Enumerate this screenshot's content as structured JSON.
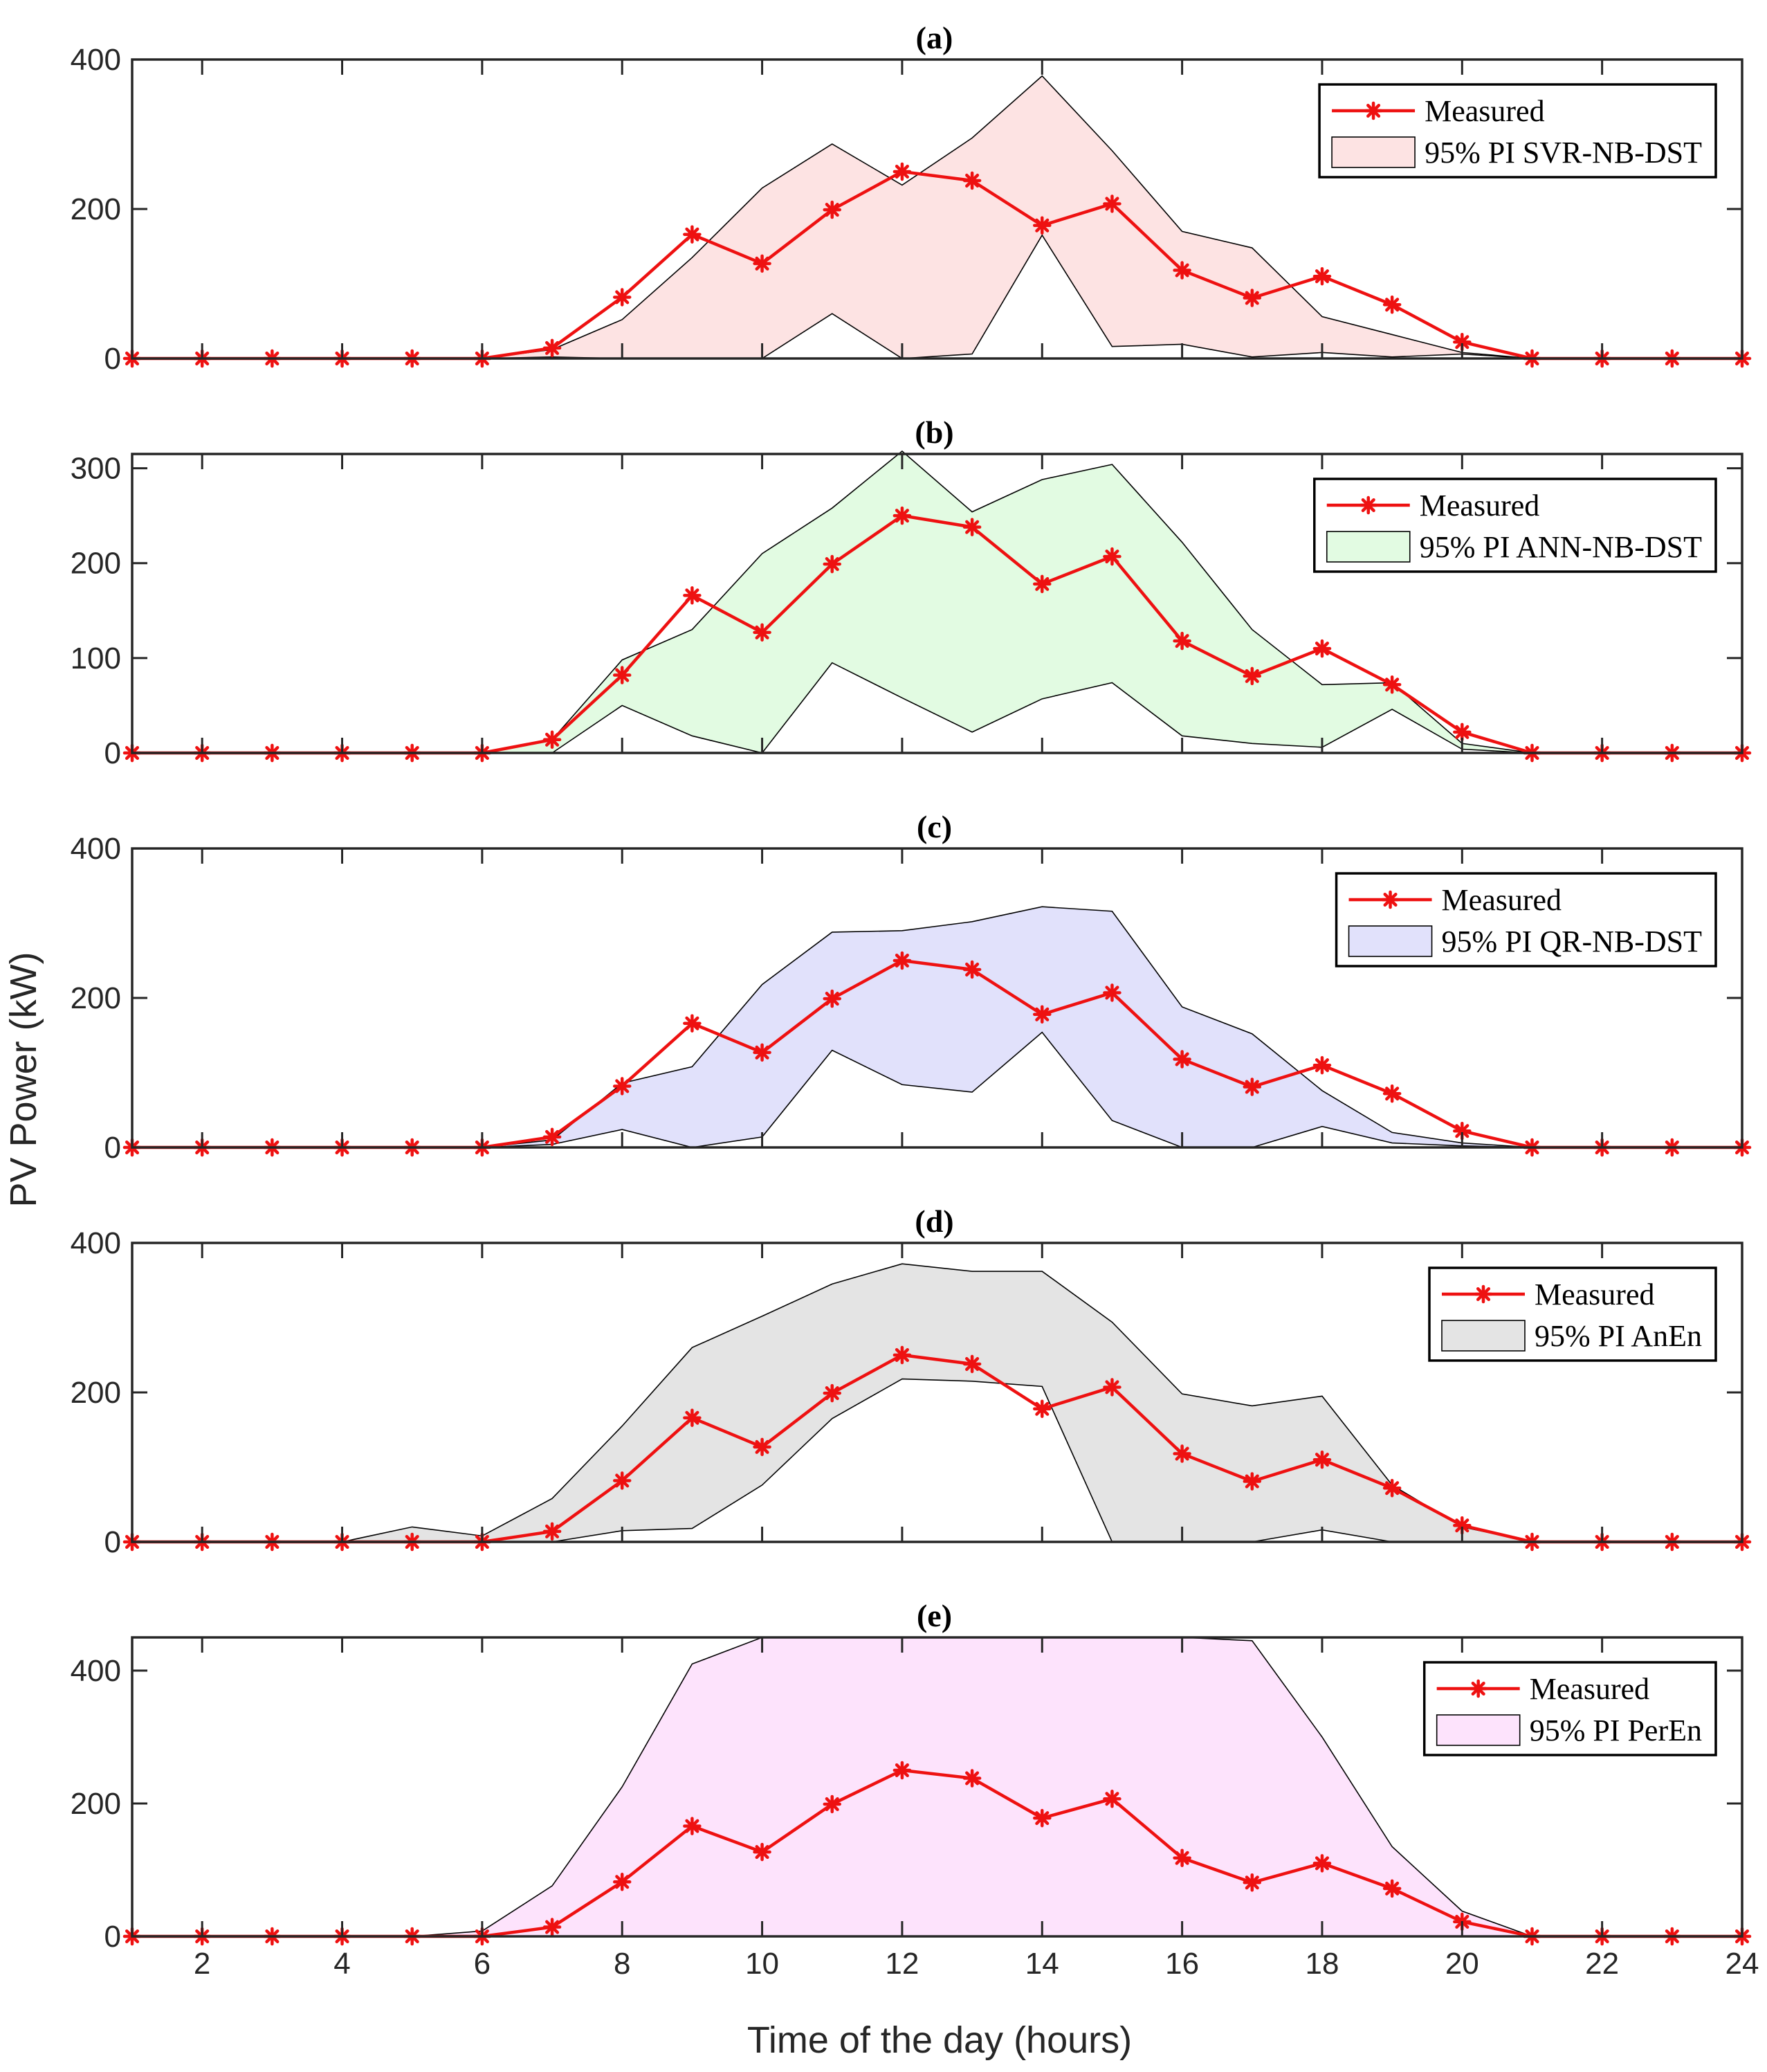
{
  "chart_data": {
    "type": "line",
    "ylabel": "PV Power (kW)",
    "xlabel": "Time of the day (hours)",
    "xlim": [
      1,
      24
    ],
    "xticks": [
      2,
      4,
      6,
      8,
      10,
      12,
      14,
      16,
      18,
      20,
      22,
      24
    ],
    "x": [
      1,
      2,
      3,
      4,
      5,
      6,
      7,
      8,
      9,
      10,
      11,
      12,
      13,
      14,
      15,
      16,
      17,
      18,
      19,
      20,
      21,
      22,
      23,
      24
    ],
    "measured": [
      0,
      0,
      0,
      0,
      0,
      0,
      14,
      82,
      166,
      127,
      199,
      250,
      238,
      178,
      207,
      118,
      81,
      110,
      72,
      22,
      0,
      0,
      0,
      0
    ],
    "colors": {
      "measured": "#ee1111",
      "band_edge": "#000000"
    },
    "panels": [
      {
        "title": "(a)",
        "ylim": [
          0,
          400
        ],
        "yticks": [
          0,
          200,
          400
        ],
        "legend": [
          "Measured",
          "95% PI SVR-NB-DST"
        ],
        "band_color": "#fde3e3",
        "upper": [
          0,
          0,
          0,
          0,
          0,
          0,
          12,
          52,
          135,
          228,
          287,
          232,
          295,
          378,
          278,
          170,
          148,
          56,
          32,
          8,
          0,
          0,
          0,
          0
        ],
        "lower": [
          0,
          0,
          0,
          0,
          0,
          0,
          2,
          0,
          0,
          0,
          60,
          0,
          6,
          165,
          16,
          19,
          2,
          8,
          2,
          6,
          0,
          0,
          0,
          0
        ]
      },
      {
        "title": "(b)",
        "ylim": [
          0,
          315
        ],
        "yticks": [
          0,
          100,
          200,
          300
        ],
        "legend": [
          "Measured",
          "95% PI ANN-NB-DST"
        ],
        "band_color": "#e2fbe2",
        "upper": [
          0,
          0,
          0,
          0,
          0,
          0,
          14,
          98,
          130,
          210,
          258,
          318,
          254,
          288,
          304,
          222,
          130,
          72,
          74,
          10,
          0,
          0,
          0,
          0
        ],
        "lower": [
          0,
          0,
          0,
          0,
          0,
          0,
          0,
          50,
          18,
          0,
          95,
          58,
          22,
          57,
          74,
          18,
          10,
          6,
          46,
          4,
          0,
          0,
          0,
          0
        ]
      },
      {
        "title": "(c)",
        "ylim": [
          0,
          400
        ],
        "yticks": [
          0,
          200,
          400
        ],
        "legend": [
          "Measured",
          "95% PI QR-NB-DST"
        ],
        "band_color": "#e1e1fb",
        "upper": [
          0,
          0,
          0,
          0,
          0,
          0,
          10,
          86,
          108,
          218,
          288,
          290,
          302,
          322,
          316,
          188,
          152,
          76,
          20,
          6,
          0,
          0,
          0,
          0
        ],
        "lower": [
          0,
          0,
          0,
          0,
          0,
          0,
          4,
          24,
          0,
          14,
          130,
          84,
          74,
          154,
          36,
          0,
          0,
          28,
          6,
          2,
          0,
          0,
          0,
          0
        ]
      },
      {
        "title": "(d)",
        "ylim": [
          0,
          400
        ],
        "yticks": [
          0,
          200,
          400
        ],
        "legend": [
          "Measured",
          "95% PI AnEn"
        ],
        "band_color": "#e4e4e4",
        "upper": [
          0,
          0,
          0,
          0,
          20,
          8,
          58,
          155,
          260,
          302,
          345,
          372,
          362,
          362,
          294,
          198,
          182,
          195,
          76,
          20,
          0,
          0,
          0,
          0
        ],
        "lower": [
          0,
          0,
          0,
          0,
          0,
          0,
          0,
          15,
          18,
          76,
          165,
          218,
          215,
          208,
          0,
          0,
          0,
          16,
          0,
          0,
          0,
          0,
          0,
          0
        ]
      },
      {
        "title": "(e)",
        "ylim": [
          0,
          450
        ],
        "yticks": [
          0,
          200,
          400
        ],
        "legend": [
          "Measured",
          "95% PI PerEn"
        ],
        "band_color": "#fde3fc",
        "upper": [
          0,
          0,
          0,
          0,
          0,
          8,
          76,
          225,
          410,
          450,
          450,
          450,
          450,
          450,
          450,
          450,
          445,
          300,
          135,
          38,
          0,
          0,
          0,
          0
        ],
        "lower": [
          0,
          0,
          0,
          0,
          0,
          0,
          0,
          0,
          0,
          0,
          0,
          0,
          0,
          0,
          0,
          0,
          0,
          0,
          0,
          0,
          0,
          0,
          0,
          0
        ]
      }
    ]
  }
}
